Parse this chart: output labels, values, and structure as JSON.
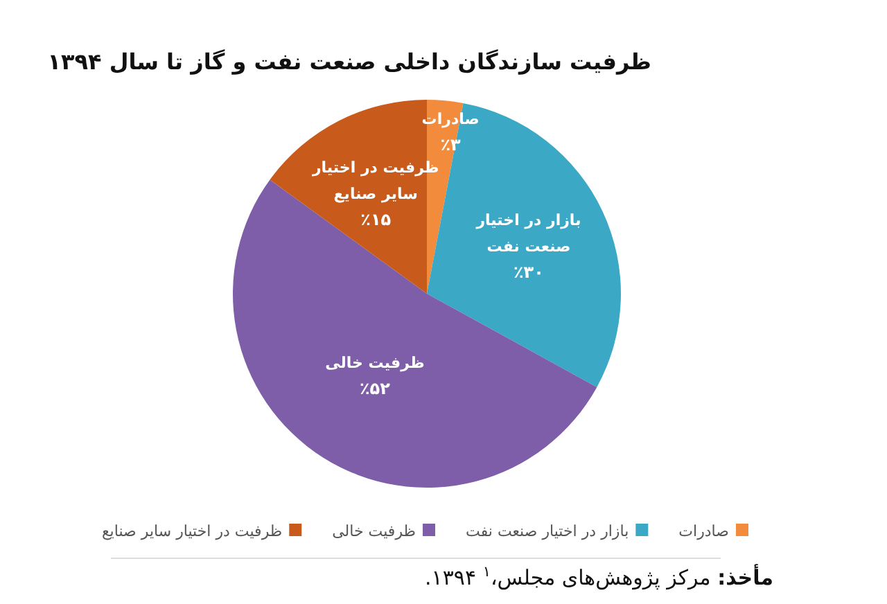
{
  "chart_data": {
    "type": "pie",
    "title": "ظرفیت سازندگان داخلی صنعت نفت و گاز تا سال ۱۳۹۴",
    "categories": [
      "صادرات",
      "بازار در اختیار صنعت نفت",
      "ظرفیت خالی",
      "ظرفیت در اختیار سایر صنایع"
    ],
    "values": [
      3,
      30,
      52,
      15
    ],
    "colors": [
      "#f28b3c",
      "#3ba9c6",
      "#7e5ea9",
      "#c85a1b"
    ],
    "value_labels": [
      "٪۳",
      "٪۳۰",
      "٪۵۲",
      "٪۱۵"
    ],
    "legend": "bottom",
    "annotations": [
      "مأخذ: مرکز پژوهش‌های مجلس،$^{۱}$ ۱۳۹۴."
    ]
  }
}
